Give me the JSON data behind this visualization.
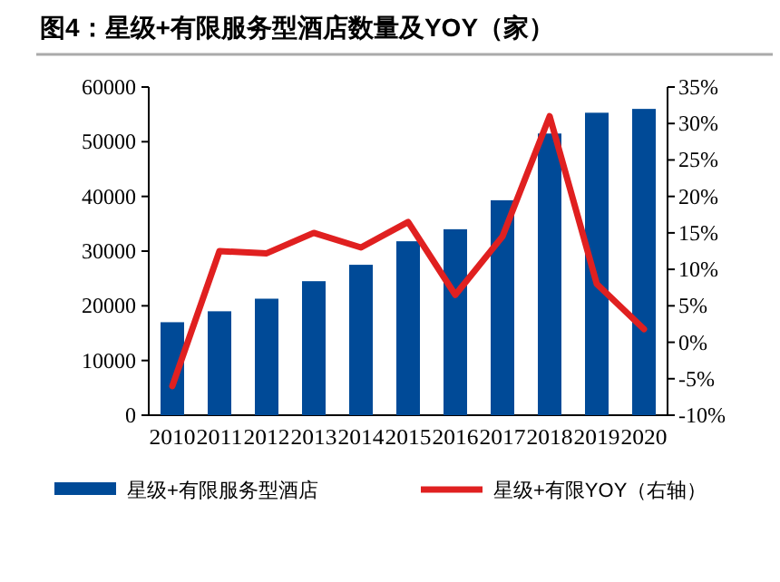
{
  "chart_data": {
    "type": "bar",
    "title": "图4：星级+有限服务型酒店数量及YOY（家）",
    "categories": [
      "2010",
      "2011",
      "2012",
      "2013",
      "2014",
      "2015",
      "2016",
      "2017",
      "2018",
      "2019",
      "2020"
    ],
    "series": [
      {
        "name": "星级+有限服务型酒店",
        "color": "#004a97",
        "values": [
          17000,
          19000,
          21300,
          24500,
          27500,
          31800,
          34000,
          39300,
          51500,
          55300,
          56000
        ]
      },
      {
        "name": "星级+有限YOY（右轴）",
        "type": "line",
        "axis": "y2",
        "color": "#e02020",
        "values": [
          -6,
          12.5,
          12.2,
          15,
          13,
          16.5,
          6.5,
          14.5,
          31,
          8,
          1.8
        ]
      }
    ],
    "ylim": [
      0,
      60000
    ],
    "yticks": [
      0,
      10000,
      20000,
      30000,
      40000,
      50000,
      60000
    ],
    "y2lim": [
      -10,
      35
    ],
    "y2ticks": [
      {
        "value": -10,
        "label": "-10%"
      },
      {
        "value": -5,
        "label": "-5%"
      },
      {
        "value": 0,
        "label": "0%"
      },
      {
        "value": 5,
        "label": "5%"
      },
      {
        "value": 10,
        "label": "10%"
      },
      {
        "value": 15,
        "label": "15%"
      },
      {
        "value": 20,
        "label": "20%"
      },
      {
        "value": 25,
        "label": "25%"
      },
      {
        "value": 30,
        "label": "30%"
      },
      {
        "value": 35,
        "label": "35%"
      }
    ],
    "grid": false,
    "legend": "bottom"
  }
}
